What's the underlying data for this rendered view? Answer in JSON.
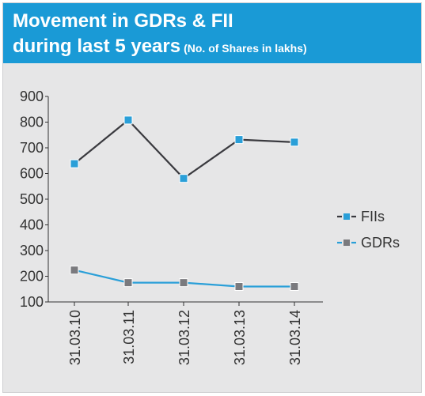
{
  "header": {
    "title_line1": "Movement in GDRs & FII",
    "title_line2": "during last 5 years",
    "subtitle": "(No. of Shares in lakhs)"
  },
  "colors": {
    "header_bg": "#1a9ad6",
    "panel_bg": "#e6e6e7",
    "fii_line": "#3a3a3f",
    "fii_marker": "#2a9fd8",
    "gdr_line": "#2a9fd8",
    "gdr_marker": "#7a7a7e"
  },
  "chart_data": {
    "type": "line",
    "title": "Movement in GDRs & FII during last 5 years",
    "subtitle": "(No. of Shares in lakhs)",
    "xlabel": "",
    "ylabel": "",
    "categories": [
      "31.03.10",
      "31.03.11",
      "31.03.12",
      "31.03.13",
      "31.03.14"
    ],
    "yticks": [
      900,
      800,
      700,
      600,
      500,
      400,
      300,
      200,
      100
    ],
    "ylim": [
      100,
      900
    ],
    "grid": false,
    "legend_position": "right",
    "series": [
      {
        "name": "FIIs",
        "values": [
          638,
          808,
          581,
          732,
          722
        ]
      },
      {
        "name": "GDRs",
        "values": [
          224,
          175,
          175,
          160,
          160
        ]
      }
    ]
  }
}
